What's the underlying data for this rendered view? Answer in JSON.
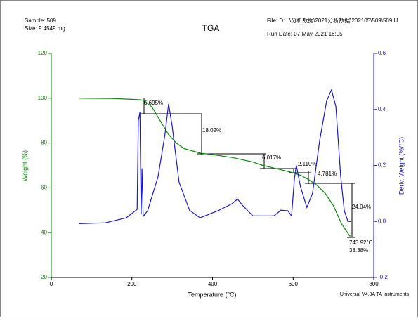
{
  "chart_data": {
    "type": "line",
    "title": "TGA",
    "sample": "Sample: 509",
    "size": "Size:  9.4549 mg",
    "file": "File: D:...\\分析数据\\2021分析数据\\202105\\509\\509.U",
    "run_date": "Run Date: 07-May-2021 16:05",
    "instrument": "Universal V4.3A TA Instruments",
    "x_label": "Temperature (°C)",
    "y_label": "Weight (%)",
    "y2_label": "Deriv. Weight (%/°C)",
    "xlim": [
      0,
      800
    ],
    "xticks": [
      0,
      200,
      400,
      600,
      800
    ],
    "ylim": [
      20,
      120
    ],
    "yticks": [
      20,
      40,
      60,
      80,
      100,
      120
    ],
    "y2lim": [
      -0.2,
      0.6
    ],
    "y2ticks": [
      -0.2,
      {
        "value": 0,
        "label": "0.0"
      },
      0.2,
      0.4,
      0.6
    ],
    "annotations": [
      "6.695%",
      "18.02%",
      "6.017%",
      "2.110%",
      "4.781%",
      "24.04%",
      "743.92°C",
      "38.38%"
    ],
    "series": [
      {
        "name": "Weight (%)",
        "color": "#0a8a0a",
        "axis": "y",
        "x": [
          68,
          150,
          200,
          220,
          230,
          250,
          270,
          290,
          310,
          330,
          370,
          400,
          450,
          500,
          525,
          560,
          600,
          620,
          640,
          660,
          680,
          700,
          720,
          740,
          743.92
        ],
        "values": [
          100,
          99.9,
          99.5,
          99.3,
          99,
          96,
          90,
          84,
          80,
          77.5,
          75.5,
          74.8,
          73.5,
          71.5,
          70,
          68.5,
          66.7,
          65.5,
          63.5,
          61,
          57.5,
          52,
          44,
          38.6,
          38.38
        ]
      },
      {
        "name": "Deriv. Weight (%/°C)",
        "color": "#1a1ac8",
        "axis": "y2",
        "x": [
          68,
          134,
          186,
          213,
          216,
          220,
          223,
          225,
          228,
          239,
          265,
          282,
          291,
          300,
          317,
          343,
          369,
          413,
          448,
          462,
          474,
          500,
          552,
          570,
          587,
          596,
          603,
          608,
          618,
          634,
          648,
          666,
          683,
          695,
          706,
          718,
          727,
          736,
          744
        ],
        "values": [
          -0.008,
          -0.005,
          0.013,
          0.043,
          0.36,
          0.39,
          0.025,
          0.19,
          0.018,
          0.038,
          0.16,
          0.31,
          0.42,
          0.34,
          0.14,
          0.04,
          0.013,
          0.038,
          0.063,
          0.08,
          0.058,
          0.02,
          0.02,
          0.04,
          0.038,
          0.02,
          0.15,
          0.2,
          0.125,
          0.05,
          0.1,
          0.29,
          0.43,
          0.47,
          0.41,
          0.16,
          0.038,
          0,
          0
        ]
      }
    ]
  }
}
